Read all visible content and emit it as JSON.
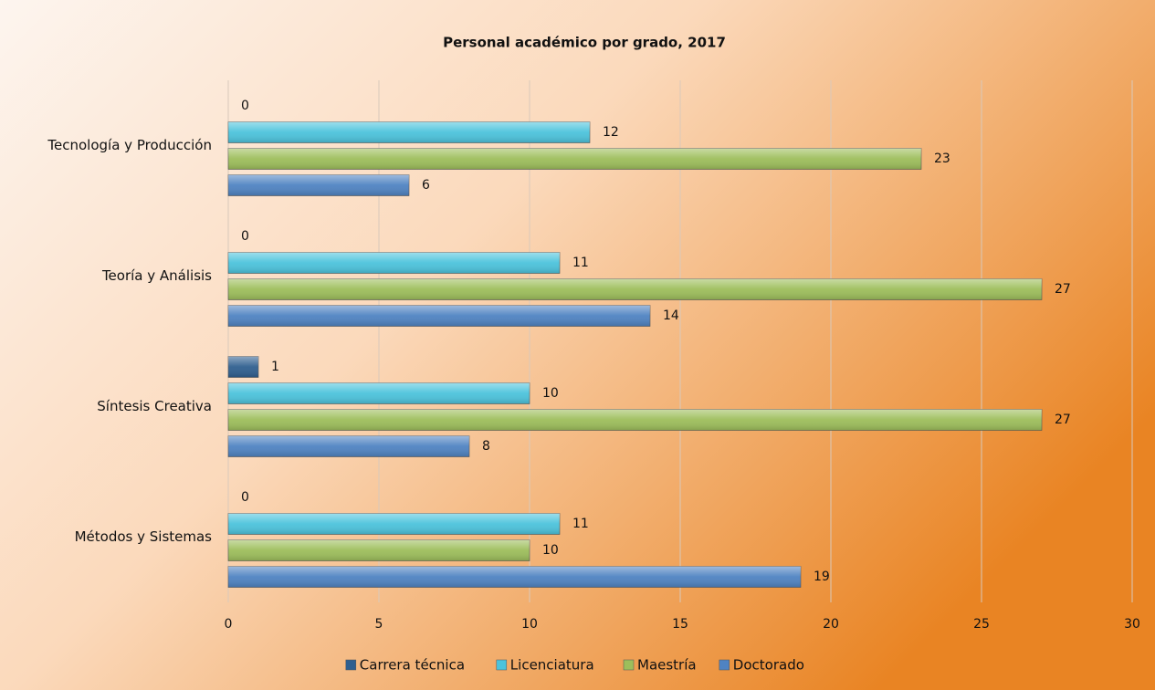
{
  "chart_data": {
    "type": "barh",
    "title": "Personal académico por grado, 2017",
    "categories": [
      "Tecnología y Producción",
      "Teoría y Análisis",
      "Síntesis Creativa",
      "Métodos y Sistemas"
    ],
    "series": [
      {
        "name": "Carrera técnica",
        "color": "#2f5f8f",
        "values": [
          0,
          0,
          1,
          0
        ]
      },
      {
        "name": "Licenciatura",
        "color": "#4cc3dc",
        "values": [
          12,
          11,
          10,
          11
        ]
      },
      {
        "name": "Maestría",
        "color": "#9dbe5b",
        "values": [
          23,
          27,
          27,
          10
        ]
      },
      {
        "name": "Doctorado",
        "color": "#4f83c2",
        "values": [
          6,
          14,
          8,
          19
        ]
      }
    ],
    "xlim": [
      0,
      30
    ],
    "xticks": [
      0,
      5,
      10,
      15,
      20,
      25,
      30
    ],
    "grid": true,
    "legend": "bottom"
  }
}
